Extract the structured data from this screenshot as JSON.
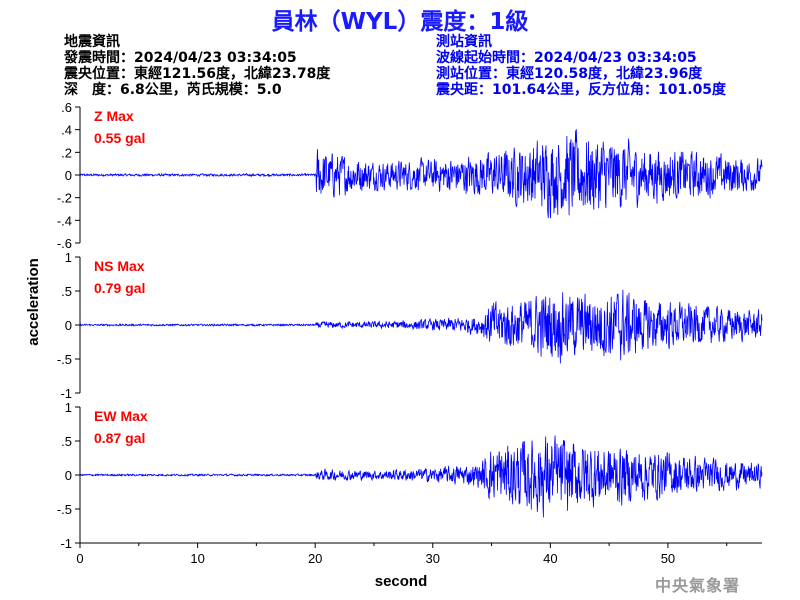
{
  "title": "員林（WYL）震度：1級",
  "quake_info": {
    "heading": "地震資訊",
    "time": "發震時間：2024/04/23 03:34:05",
    "epicenter": "震央位置：東經121.56度，北緯23.78度",
    "depth": "深　度：6.8公里，芮氏規模：5.0"
  },
  "station_info": {
    "heading": "測站資訊",
    "wave_start": "波線起始時間：2024/04/23 03:34:05",
    "location": "測站位置：東經120.58度，北緯23.96度",
    "distance": "震央距：101.64公里，反方位角：101.05度"
  },
  "footer": "中央氣象署",
  "colors": {
    "trace": "#0000ff",
    "label": "#ff0000",
    "title": "#1a1aff",
    "station": "#0000ee"
  },
  "chart_data": {
    "type": "line",
    "xlabel": "second",
    "ylabel": "acceleration",
    "xlim": [
      0,
      58
    ],
    "xticks": [
      0,
      10,
      20,
      30,
      40,
      50
    ],
    "grid": false,
    "panels": [
      {
        "name": "Z",
        "max_label": "Z Max",
        "max_value": "0.55 gal",
        "ylim": [
          -0.6,
          0.6
        ],
        "yticks": [
          -0.6,
          -0.4,
          -0.2,
          0,
          0.2,
          0.4,
          0.6
        ],
        "envelope": [
          [
            0,
            0.015
          ],
          [
            20,
            0.015
          ],
          [
            20.1,
            0.35
          ],
          [
            21,
            0.3
          ],
          [
            25,
            0.18
          ],
          [
            30,
            0.2
          ],
          [
            35,
            0.28
          ],
          [
            39,
            0.45
          ],
          [
            42,
            0.55
          ],
          [
            45,
            0.48
          ],
          [
            48,
            0.35
          ],
          [
            52,
            0.3
          ],
          [
            55,
            0.25
          ],
          [
            58,
            0.2
          ]
        ]
      },
      {
        "name": "NS",
        "max_label": "NS Max",
        "max_value": "0.79 gal",
        "ylim": [
          -1,
          1
        ],
        "yticks": [
          -1,
          -0.5,
          0,
          0.5,
          1
        ],
        "envelope": [
          [
            0,
            0.02
          ],
          [
            20,
            0.02
          ],
          [
            20.2,
            0.07
          ],
          [
            25,
            0.07
          ],
          [
            30,
            0.12
          ],
          [
            34,
            0.2
          ],
          [
            35,
            0.5
          ],
          [
            38,
            0.55
          ],
          [
            40,
            0.78
          ],
          [
            43,
            0.65
          ],
          [
            46,
            0.79
          ],
          [
            48,
            0.55
          ],
          [
            52,
            0.45
          ],
          [
            55,
            0.35
          ],
          [
            58,
            0.3
          ]
        ]
      },
      {
        "name": "EW",
        "max_label": "EW Max",
        "max_value": "0.87 gal",
        "ylim": [
          -1,
          1
        ],
        "yticks": [
          -1,
          -0.5,
          0,
          0.5,
          1
        ],
        "envelope": [
          [
            0,
            0.02
          ],
          [
            20,
            0.02
          ],
          [
            20.2,
            0.12
          ],
          [
            25,
            0.1
          ],
          [
            30,
            0.15
          ],
          [
            34,
            0.25
          ],
          [
            35,
            0.6
          ],
          [
            38,
            0.75
          ],
          [
            39.5,
            0.87
          ],
          [
            42,
            0.75
          ],
          [
            45,
            0.65
          ],
          [
            48,
            0.55
          ],
          [
            52,
            0.4
          ],
          [
            55,
            0.3
          ],
          [
            58,
            0.25
          ]
        ]
      }
    ]
  }
}
